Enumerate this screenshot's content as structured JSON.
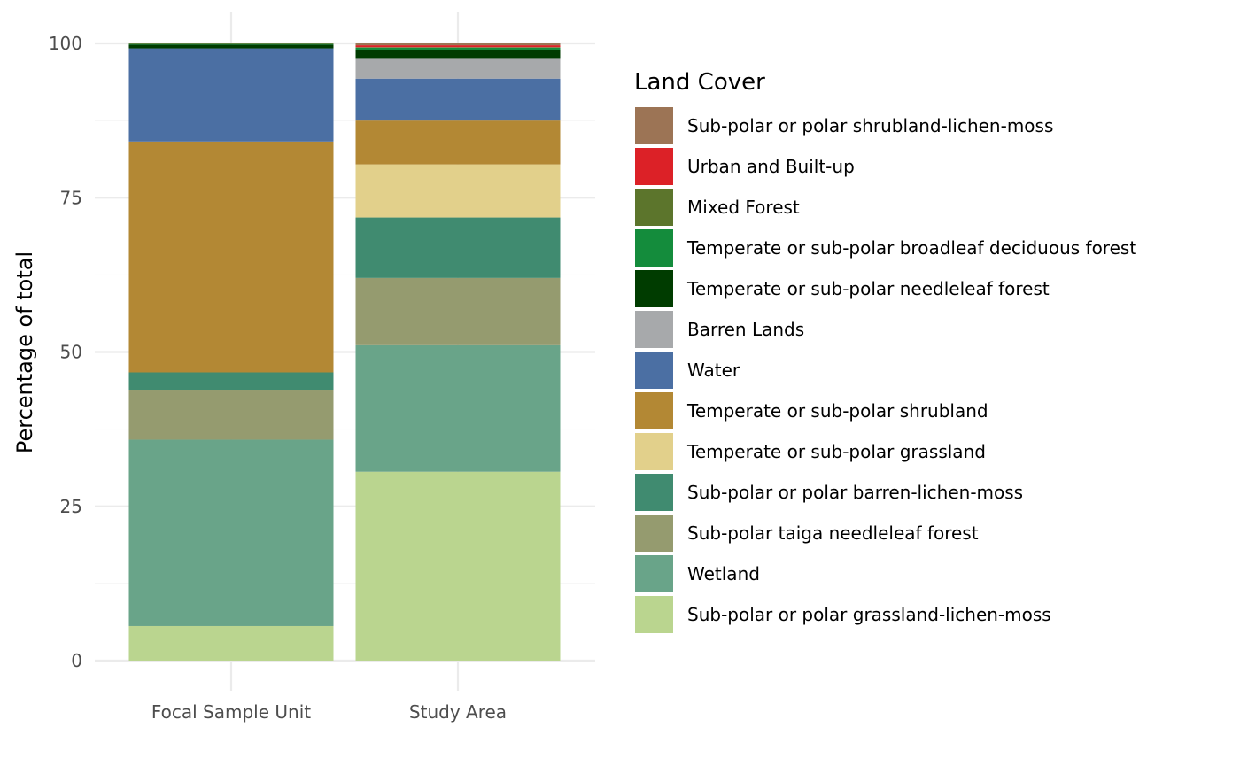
{
  "chart_data": {
    "type": "bar",
    "stacked": true,
    "categories": [
      "Focal Sample Unit",
      "Study Area"
    ],
    "ylabel": "Percentage of total",
    "xlabel": "",
    "ylim": [
      0,
      100
    ],
    "yticks": [
      0,
      25,
      50,
      75,
      100
    ],
    "grid": true,
    "legend": {
      "title": "Land Cover",
      "position": "right"
    },
    "series": [
      {
        "name": "Sub-polar or polar grassland-lichen-moss",
        "color": "#bad58f",
        "values": [
          5.6,
          30.6
        ]
      },
      {
        "name": "Wetland",
        "color": "#69a489",
        "values": [
          30.2,
          20.5
        ]
      },
      {
        "name": "Sub-polar taiga needleleaf forest",
        "color": "#959b6f",
        "values": [
          8.1,
          10.9
        ]
      },
      {
        "name": "Sub-polar or polar barren-lichen-moss",
        "color": "#408b70",
        "values": [
          2.8,
          9.8
        ]
      },
      {
        "name": "Temperate or sub-polar grassland",
        "color": "#e2d08b",
        "values": [
          0.0,
          8.6
        ]
      },
      {
        "name": "Temperate or sub-polar shrubland",
        "color": "#b38834",
        "values": [
          37.4,
          7.1
        ]
      },
      {
        "name": "Water",
        "color": "#4b6fa3",
        "values": [
          15.1,
          6.8
        ]
      },
      {
        "name": "Barren Lands",
        "color": "#a7a9ab",
        "values": [
          0.0,
          3.2
        ]
      },
      {
        "name": "Temperate or sub-polar needleleaf forest",
        "color": "#003c00",
        "values": [
          0.6,
          1.4
        ]
      },
      {
        "name": "Temperate or sub-polar broadleaf deciduous forest",
        "color": "#148c3c",
        "values": [
          0.1,
          0.4
        ]
      },
      {
        "name": "Mixed Forest",
        "color": "#5c752c",
        "values": [
          0.1,
          0.1
        ]
      },
      {
        "name": "Urban and Built-up",
        "color": "#dc2127",
        "values": [
          0.0,
          0.3
        ]
      },
      {
        "name": "Sub-polar or polar shrubland-lichen-moss",
        "color": "#9c7455",
        "values": [
          0.0,
          0.3
        ]
      }
    ]
  }
}
